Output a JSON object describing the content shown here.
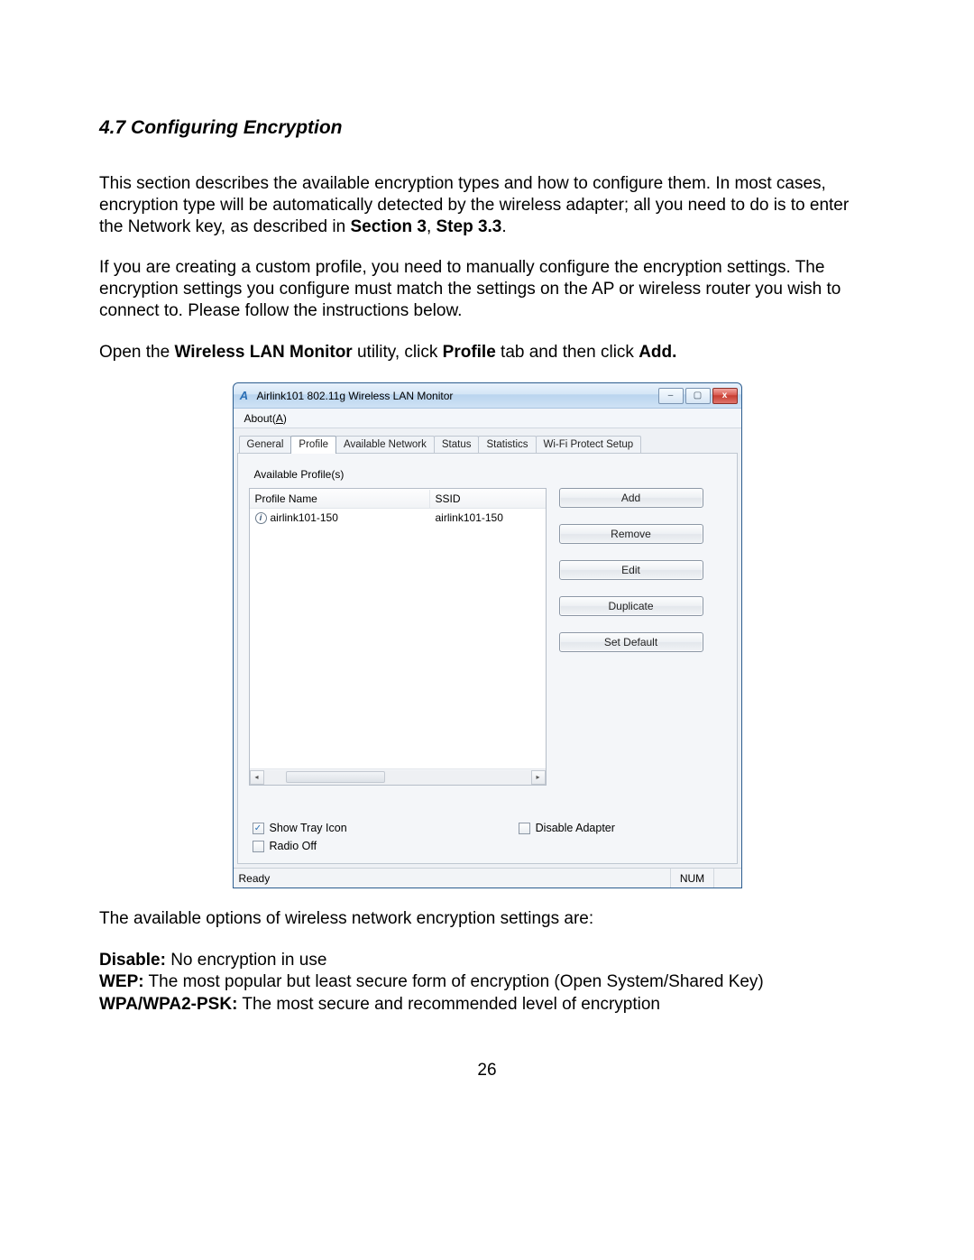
{
  "doc": {
    "heading": "4.7 Configuring Encryption",
    "para1a": "This section describes the available encryption types and how to configure them. In most cases, encryption type will be automatically detected by the wireless adapter; all you need to do is to enter the Network key, as described in ",
    "para1b": "Section 3",
    "para1c": ", ",
    "para1d": "Step 3.3",
    "para1e": ".",
    "para2": "If you are creating a custom profile, you need to manually configure the encryption settings. The encryption settings you configure must match the settings on the AP or wireless router you wish to connect to. Please follow the instructions below.",
    "para3a": "Open the ",
    "para3b": "Wireless LAN Monitor",
    "para3c": " utility, click ",
    "para3d": "Profile",
    "para3e": " tab and then click ",
    "para3f": "Add.",
    "afterImg": "The available options of wireless network encryption settings are:",
    "defs": {
      "disable_t": "Disable:",
      "disable_d": "  No encryption in use",
      "wep_t": "WEP:",
      "wep_d": "  The most popular but least secure form of encryption (Open System/Shared Key)",
      "wpa_t": "WPA/WPA2-PSK:",
      "wpa_d": "  The most secure and recommended level of encryption"
    },
    "pageNumber": "26"
  },
  "window": {
    "title": "Airlink101 802.11g Wireless LAN Monitor",
    "appIconLetter": "A",
    "winButtons": {
      "min": "–",
      "max": "▢",
      "close": "x"
    },
    "menubar": {
      "aboutPrefix": "About(",
      "aboutKey": "A",
      "aboutSuffix": ")"
    },
    "tabs": [
      "General",
      "Profile",
      "Available Network",
      "Status",
      "Statistics",
      "Wi-Fi Protect Setup"
    ],
    "activeTabIndex": 1,
    "profilesLabel": "Available Profile(s)",
    "columns": {
      "name": "Profile Name",
      "ssid": "SSID"
    },
    "rows": [
      {
        "name": "airlink101-150",
        "ssid": "airlink101-150"
      }
    ],
    "scroll": {
      "left": "◂",
      "right": "▸",
      "thumbGlyph": "⋯"
    },
    "buttons": [
      "Add",
      "Remove",
      "Edit",
      "Duplicate",
      "Set Default"
    ],
    "checkboxes": {
      "showTray": {
        "label": "Show Tray Icon",
        "checked": true
      },
      "radioOff": {
        "label": "Radio Off",
        "checked": false
      },
      "disableAdapter": {
        "label": "Disable Adapter",
        "checked": false
      }
    },
    "statusbar": {
      "ready": "Ready",
      "num": "NUM"
    },
    "colors": {
      "windowBorder": "#2c5d8f",
      "titleGradTop": "#e9f2fb",
      "titleGradBot": "#cfe2f5",
      "tabBorder": "#bfc7d1",
      "buttonBorder": "#8d98a6",
      "closeRed": "#c63b30"
    }
  }
}
